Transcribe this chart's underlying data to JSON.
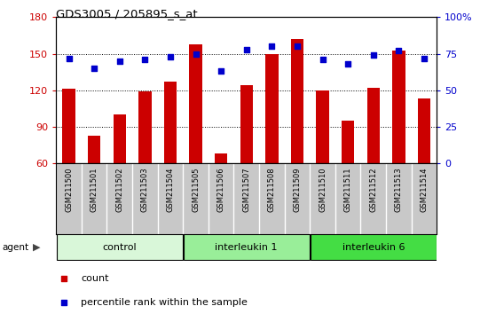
{
  "title": "GDS3005 / 205895_s_at",
  "samples": [
    "GSM211500",
    "GSM211501",
    "GSM211502",
    "GSM211503",
    "GSM211504",
    "GSM211505",
    "GSM211506",
    "GSM211507",
    "GSM211508",
    "GSM211509",
    "GSM211510",
    "GSM211511",
    "GSM211512",
    "GSM211513",
    "GSM211514"
  ],
  "counts": [
    121,
    83,
    100,
    119,
    127,
    158,
    68,
    124,
    150,
    162,
    120,
    95,
    122,
    153,
    113
  ],
  "percentiles": [
    72,
    65,
    70,
    71,
    73,
    75,
    63,
    78,
    80,
    80,
    71,
    68,
    74,
    77,
    72
  ],
  "groups": [
    {
      "label": "control",
      "start": 0,
      "end": 4,
      "color": "#d9f7d9"
    },
    {
      "label": "interleukin 1",
      "start": 5,
      "end": 9,
      "color": "#99ee99"
    },
    {
      "label": "interleukin 6",
      "start": 10,
      "end": 14,
      "color": "#44dd44"
    }
  ],
  "ylim_left": [
    60,
    180
  ],
  "yticks_left": [
    60,
    90,
    120,
    150,
    180
  ],
  "ylim_right": [
    0,
    100
  ],
  "yticks_right": [
    0,
    25,
    50,
    75,
    100
  ],
  "bar_color": "#cc0000",
  "dot_color": "#0000cc",
  "tick_bg_color": "#c8c8c8",
  "tick_sep_color": "#ffffff",
  "plot_bg": "#ffffff",
  "fig_bg": "#ffffff"
}
